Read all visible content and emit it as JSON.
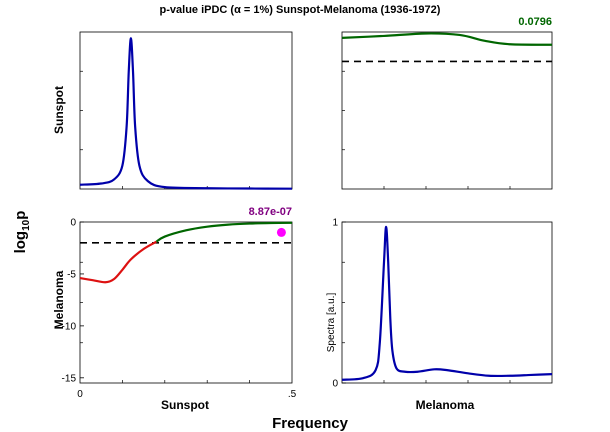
{
  "chart_data": {
    "type": "line",
    "title": "p-value iPDC (α = 1%) Sunspot-Melanoma (1936-1972)",
    "xlabel": "Frequency",
    "ylabel": "log10p",
    "ylabel_base": "log",
    "ylabel_sub": "10",
    "ylabel_end": "p",
    "row_labels": [
      "Sunspot",
      "Melanoma"
    ],
    "col_labels": [
      "Sunspot",
      "Melanoma"
    ],
    "colors": {
      "spectrum": "#0000aa",
      "significant": "#dd1111",
      "not_significant": "#006600",
      "threshold": "#000000",
      "marker": "#ff00ff"
    },
    "panels": [
      {
        "id": "sunspot-spectrum",
        "kind": "spectrum",
        "xlim": [
          0,
          0.5
        ],
        "ylim": [
          0,
          1
        ],
        "x": [
          0,
          0.05,
          0.08,
          0.1,
          0.11,
          0.115,
          0.12,
          0.125,
          0.13,
          0.14,
          0.16,
          0.2,
          0.3,
          0.4,
          0.5
        ],
        "y": [
          0.027,
          0.035,
          0.06,
          0.15,
          0.4,
          0.75,
          0.96,
          0.75,
          0.4,
          0.15,
          0.05,
          0.012,
          0.005,
          0.003,
          0.002
        ]
      },
      {
        "id": "melanoma-to-sunspot-pvalue",
        "kind": "pvalue",
        "pvalue_label": "0.0796",
        "xlim": [
          0,
          0.5
        ],
        "ylim": [
          -15,
          1
        ],
        "threshold": -2,
        "x": [
          0,
          0.1,
          0.2,
          0.28,
          0.34,
          0.4,
          0.5
        ],
        "y": [
          0.4,
          0.6,
          0.85,
          0.7,
          0.1,
          -0.25,
          -0.3
        ]
      },
      {
        "id": "sunspot-to-melanoma-pvalue",
        "kind": "pvalue",
        "pvalue_label": "8.87e-07",
        "xlim": [
          0,
          0.5
        ],
        "ylim": [
          -15.5,
          0
        ],
        "threshold": -2,
        "yticks": [
          0,
          -5,
          -10,
          -15
        ],
        "xticks": [
          0,
          0.5
        ],
        "xticklabels": [
          "0",
          ".5"
        ],
        "marker": {
          "x": 0.475,
          "y": -1.0
        },
        "x": [
          0,
          0.03,
          0.06,
          0.08,
          0.1,
          0.12,
          0.15,
          0.18,
          0.2,
          0.25,
          0.3,
          0.35,
          0.4,
          0.45,
          0.5
        ],
        "y": [
          -5.4,
          -5.6,
          -5.8,
          -5.5,
          -4.6,
          -3.6,
          -2.6,
          -1.9,
          -1.4,
          -0.8,
          -0.45,
          -0.25,
          -0.15,
          -0.1,
          -0.08
        ]
      },
      {
        "id": "melanoma-spectrum",
        "kind": "spectrum",
        "ylabel": "Spectra [a.u.]",
        "xlim": [
          0,
          0.5
        ],
        "ylim": [
          0,
          1
        ],
        "yticks": [
          0,
          1
        ],
        "x": [
          0,
          0.05,
          0.08,
          0.09,
          0.1,
          0.105,
          0.11,
          0.115,
          0.12,
          0.13,
          0.15,
          0.18,
          0.22,
          0.25,
          0.3,
          0.35,
          0.4,
          0.45,
          0.5
        ],
        "y": [
          0.02,
          0.03,
          0.08,
          0.25,
          0.75,
          0.97,
          0.75,
          0.4,
          0.2,
          0.09,
          0.07,
          0.07,
          0.085,
          0.08,
          0.06,
          0.045,
          0.045,
          0.05,
          0.055
        ]
      }
    ]
  }
}
